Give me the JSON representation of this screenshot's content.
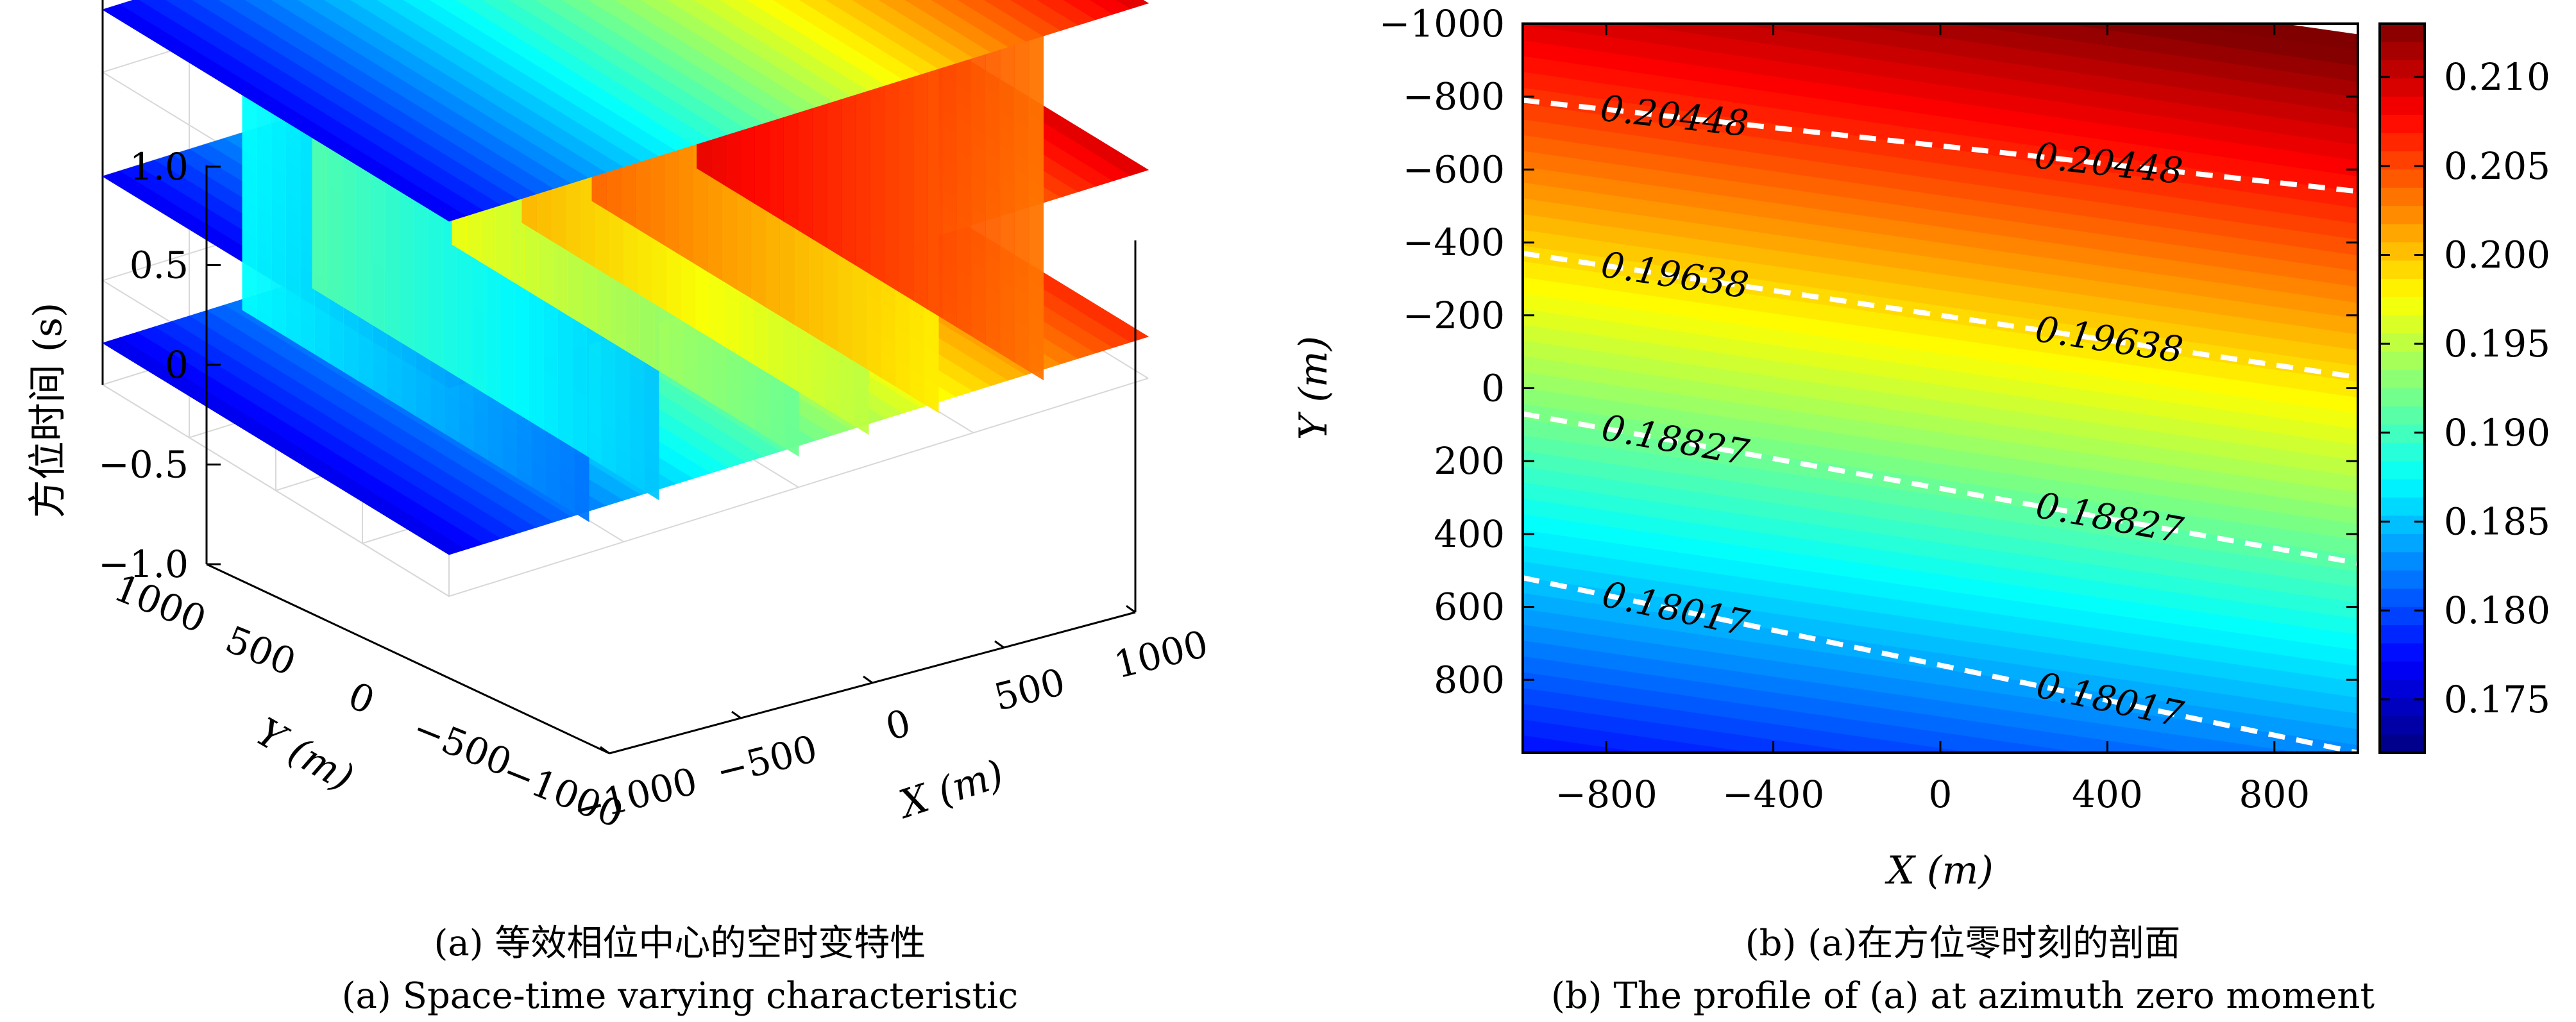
{
  "chart_data": [
    {
      "type": "3d-slice",
      "xlabel": "X (m)",
      "ylabel": "Y (m)",
      "zlabel": "方位时间 (s)",
      "x_ticks": [
        -1000,
        -500,
        0,
        500,
        1000
      ],
      "y_ticks": [
        1000,
        500,
        0,
        -500,
        -1000
      ],
      "z_ticks": [
        1.0,
        0.5,
        0,
        -0.5,
        -1.0
      ],
      "z_tick_labels": [
        "1.0",
        "0.5",
        "0",
        "−0.5",
        "−1.0"
      ],
      "xlim": [
        -1000,
        1000
      ],
      "ylim": [
        -1000,
        1000
      ],
      "zlim": [
        -1,
        1
      ],
      "slices_z": [
        -0.8,
        0,
        0.8
      ],
      "slices_x": [
        -600,
        -400,
        0,
        200,
        400,
        700
      ],
      "colormap": "jet",
      "caption_zh": "(a) 等效相位中心的空时变特性",
      "caption_en": "(a) Space-time varying characteristic"
    },
    {
      "type": "heatmap",
      "xlabel": "X (m)",
      "ylabel": "Y (m)",
      "xlim": [
        -1000,
        1000
      ],
      "ylim": [
        -1000,
        1000
      ],
      "x_ticks": [
        -800,
        -400,
        0,
        400,
        800
      ],
      "y_ticks": [
        -1000,
        -800,
        -600,
        -400,
        -200,
        0,
        200,
        400,
        600,
        800
      ],
      "y_tick_labels": [
        "−1000",
        "−800",
        "−600",
        "−400",
        "−200",
        "0",
        "200",
        "400",
        "600",
        "800"
      ],
      "x_tick_labels": [
        "−800",
        "−400",
        "0",
        "400",
        "800"
      ],
      "colorbar": {
        "range": [
          0.172,
          0.213
        ],
        "ticks": [
          0.175,
          0.18,
          0.185,
          0.19,
          0.195,
          0.2,
          0.205,
          0.21
        ],
        "tick_labels": [
          "0.175",
          "0.180",
          "0.185",
          "0.190",
          "0.195",
          "0.200",
          "0.205",
          "0.210"
        ]
      },
      "contours": [
        {
          "level": "0.20448",
          "y_left": -790,
          "y_right": -540
        },
        {
          "level": "0.19638",
          "y_left": -370,
          "y_right": -30
        },
        {
          "level": "0.18827",
          "y_left": 70,
          "y_right": 480
        },
        {
          "level": "0.18017",
          "y_left": 520,
          "y_right": 1000
        }
      ],
      "colormap": "jet",
      "caption_zh": "(b) (a)在方位零时刻的剖面",
      "caption_en": "(b) The profile of (a) at azimuth zero moment"
    }
  ]
}
